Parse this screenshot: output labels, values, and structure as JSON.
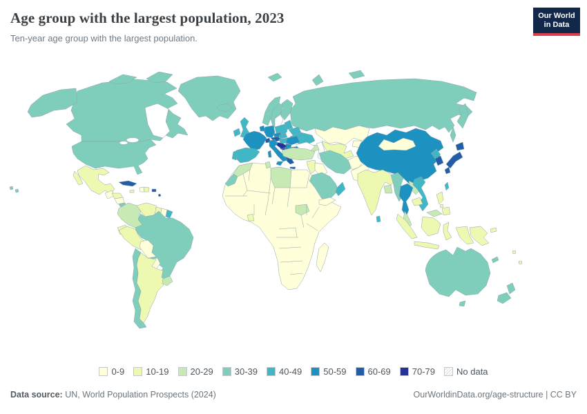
{
  "header": {
    "title": "Age group with the largest population, 2023",
    "subtitle": "Ten-year age group with the largest population.",
    "logo": {
      "line1": "Our World",
      "line2": "in Data"
    }
  },
  "legend": {
    "items": [
      {
        "label": "0-9",
        "color": "#ffffd9"
      },
      {
        "label": "10-19",
        "color": "#edf8b1"
      },
      {
        "label": "20-29",
        "color": "#c7e9b4"
      },
      {
        "label": "30-39",
        "color": "#7fcdbb"
      },
      {
        "label": "40-49",
        "color": "#41b6c4"
      },
      {
        "label": "50-59",
        "color": "#1d91c0"
      },
      {
        "label": "60-69",
        "color": "#225ea8"
      },
      {
        "label": "70-79",
        "color": "#253494"
      },
      {
        "label": "No data",
        "color": "hatch"
      }
    ]
  },
  "footer": {
    "source_bold": "Data source:",
    "source_rest": " UN, World Population Prospects (2024)",
    "credit": "OurWorldinData.org/age-structure | CC BY"
  },
  "chart_data": {
    "type": "choropleth",
    "title": "Age group with the largest population, 2023",
    "subtitle": "Ten-year age group with the largest population.",
    "year": 2023,
    "unit": "ten-year age group with the largest population",
    "legend_position": "bottom",
    "categories": [
      "0-9",
      "10-19",
      "20-29",
      "30-39",
      "40-49",
      "50-59",
      "60-69",
      "70-79",
      "No data"
    ],
    "colors": {
      "0-9": "#ffffd9",
      "10-19": "#edf8b1",
      "20-29": "#c7e9b4",
      "30-39": "#7fcdbb",
      "40-49": "#41b6c4",
      "50-59": "#1d91c0",
      "60-69": "#225ea8",
      "70-79": "#253494",
      "No data": "hatch"
    },
    "regions": {
      "russia": "30-39",
      "canada": "30-39",
      "united-states": "30-39",
      "greenland": "30-39",
      "iceland": "30-39",
      "mexico": "10-19",
      "guatemala": "0-9",
      "honduras": "10-19",
      "nicaragua": "0-9",
      "costa-rica": "30-39",
      "panama": "10-19",
      "cuba": "60-69",
      "jamaica": "10-19",
      "haiti": "0-9",
      "dominican-republic": "10-19",
      "puerto-rico": "60-69",
      "lesser-antilles": "60-69",
      "colombia": "20-29",
      "venezuela": "10-19",
      "guyana": "10-19",
      "suriname": "0-9",
      "french-guiana": "40-49",
      "ecuador": "10-19",
      "peru": "10-19",
      "brazil": "30-39",
      "bolivia": "0-9",
      "paraguay": "0-9",
      "chile": "30-39",
      "argentina": "10-19",
      "uruguay": "20-29",
      "africa-other": "0-9",
      "morocco": "20-29",
      "western-sahara": "30-39",
      "tunisia": "20-29",
      "libya": "20-29",
      "south-sudan": "20-29",
      "ghana": "10-19",
      "madagascar": "0-9",
      "norway": "30-39",
      "sweden": "30-39",
      "finland": "30-39",
      "denmark": "50-59",
      "united-kingdom": "40-49",
      "ireland": "40-49",
      "netherlands": "50-59",
      "germany": "50-59",
      "france": "50-59",
      "switzerland": "60-69",
      "czechia": "50-59",
      "austria": "60-69",
      "slovakia": "40-49",
      "poland": "40-49",
      "hungary": "40-49",
      "baltic-states": "40-49",
      "belarus": "40-49",
      "ukraine": "40-49",
      "romania": "50-59",
      "serbia": "50-59",
      "bosnia": "60-69",
      "croatia": "70-79",
      "albania": "20-29",
      "north-macedonia": "40-49",
      "bulgaria": "50-59",
      "greece": "60-69",
      "italy": "50-59",
      "spain": "40-49",
      "portugal": "40-49",
      "turkey": "20-29",
      "kazakhstan": "0-9",
      "uzbekistan": "10-19",
      "kyrgyzstan": "0-9",
      "azerbaijan": "20-29",
      "syria": "10-19",
      "iraq": "0-9",
      "saudi-arabia": "30-39",
      "yemen": "0-9",
      "oman": "40-49",
      "iran": "30-39",
      "afghanistan": "0-9",
      "pakistan": "0-9",
      "india": "10-19",
      "bangladesh": "20-29",
      "sri-lanka": "40-49",
      "myanmar": "30-39",
      "thailand": "50-59",
      "laos": "20-29",
      "cambodia": "10-19",
      "vietnam": "40-49",
      "malaysia": "20-29",
      "indonesia": "10-19",
      "papua-new-guinea": "10-19",
      "philippines": "10-19",
      "taiwan": "40-49",
      "china": "50-59",
      "mongolia": "0-9",
      "north-korea": "40-49",
      "south-korea": "60-69",
      "japan": "60-69",
      "australia": "30-39",
      "new-zealand": "30-39",
      "new-caledonia": "30-39",
      "fiji": "10-19"
    }
  }
}
